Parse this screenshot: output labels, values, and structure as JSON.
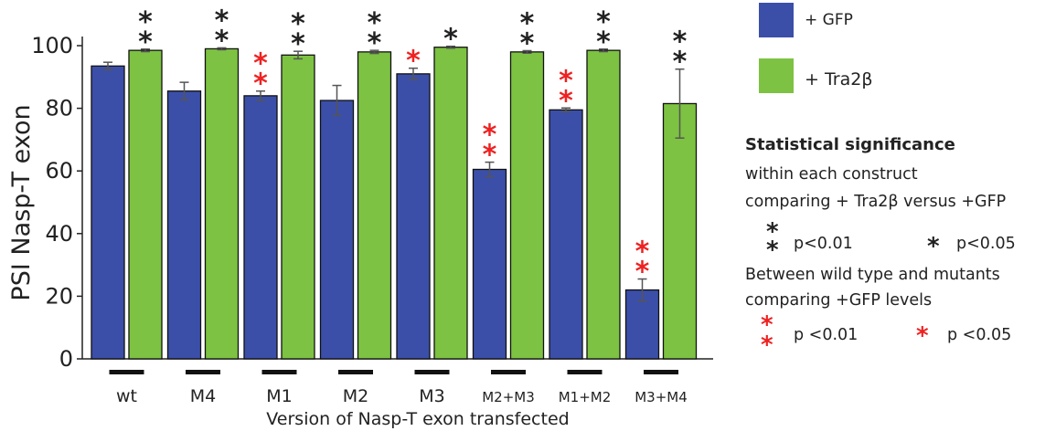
{
  "chart_data": {
    "type": "bar",
    "ylabel": "PSI  Nasp-T exon",
    "xlabel": "Version of Nasp-T exon transfected",
    "ylim": [
      0,
      100
    ],
    "yticks": [
      0,
      20,
      40,
      60,
      80,
      100
    ],
    "categories": [
      "wt",
      "M4",
      "M1",
      "M2",
      "M3",
      "M2+M3",
      "M1+M2",
      "M3+M4"
    ],
    "series": [
      {
        "name": "+ GFP",
        "color": "#3b4fa8",
        "values": [
          93.5,
          85.5,
          84,
          82.5,
          91,
          60.5,
          79.5,
          22
        ],
        "errors": [
          1.2,
          2.8,
          1.5,
          4.8,
          1.8,
          2.3,
          0.6,
          3.5
        ],
        "stars_red": [
          0,
          0,
          2,
          0,
          1,
          2,
          2,
          2
        ]
      },
      {
        "name": "+ Tra2β",
        "color": "#7dc242",
        "values": [
          98.5,
          99,
          97,
          98,
          99.5,
          98,
          98.5,
          81.5
        ],
        "errors": [
          0.4,
          0.3,
          1.2,
          0.5,
          0.3,
          0.4,
          0.4,
          11
        ],
        "stars_black": [
          2,
          2,
          2,
          2,
          1,
          2,
          2,
          2
        ]
      }
    ]
  },
  "legend": {
    "gfp_label": "+ GFP",
    "tra_label": "+ Tra2β"
  },
  "significance": {
    "title": "Statistical significance",
    "line1": "within each construct",
    "line2": "comparing + Tra2β versus  +GFP",
    "black_p01": "p<0.01",
    "black_p05": "p<0.05",
    "line3": "Between wild type and mutants",
    "line4": "comparing +GFP levels",
    "red_p01": "p <0.01",
    "red_p05": "p <0.05"
  }
}
